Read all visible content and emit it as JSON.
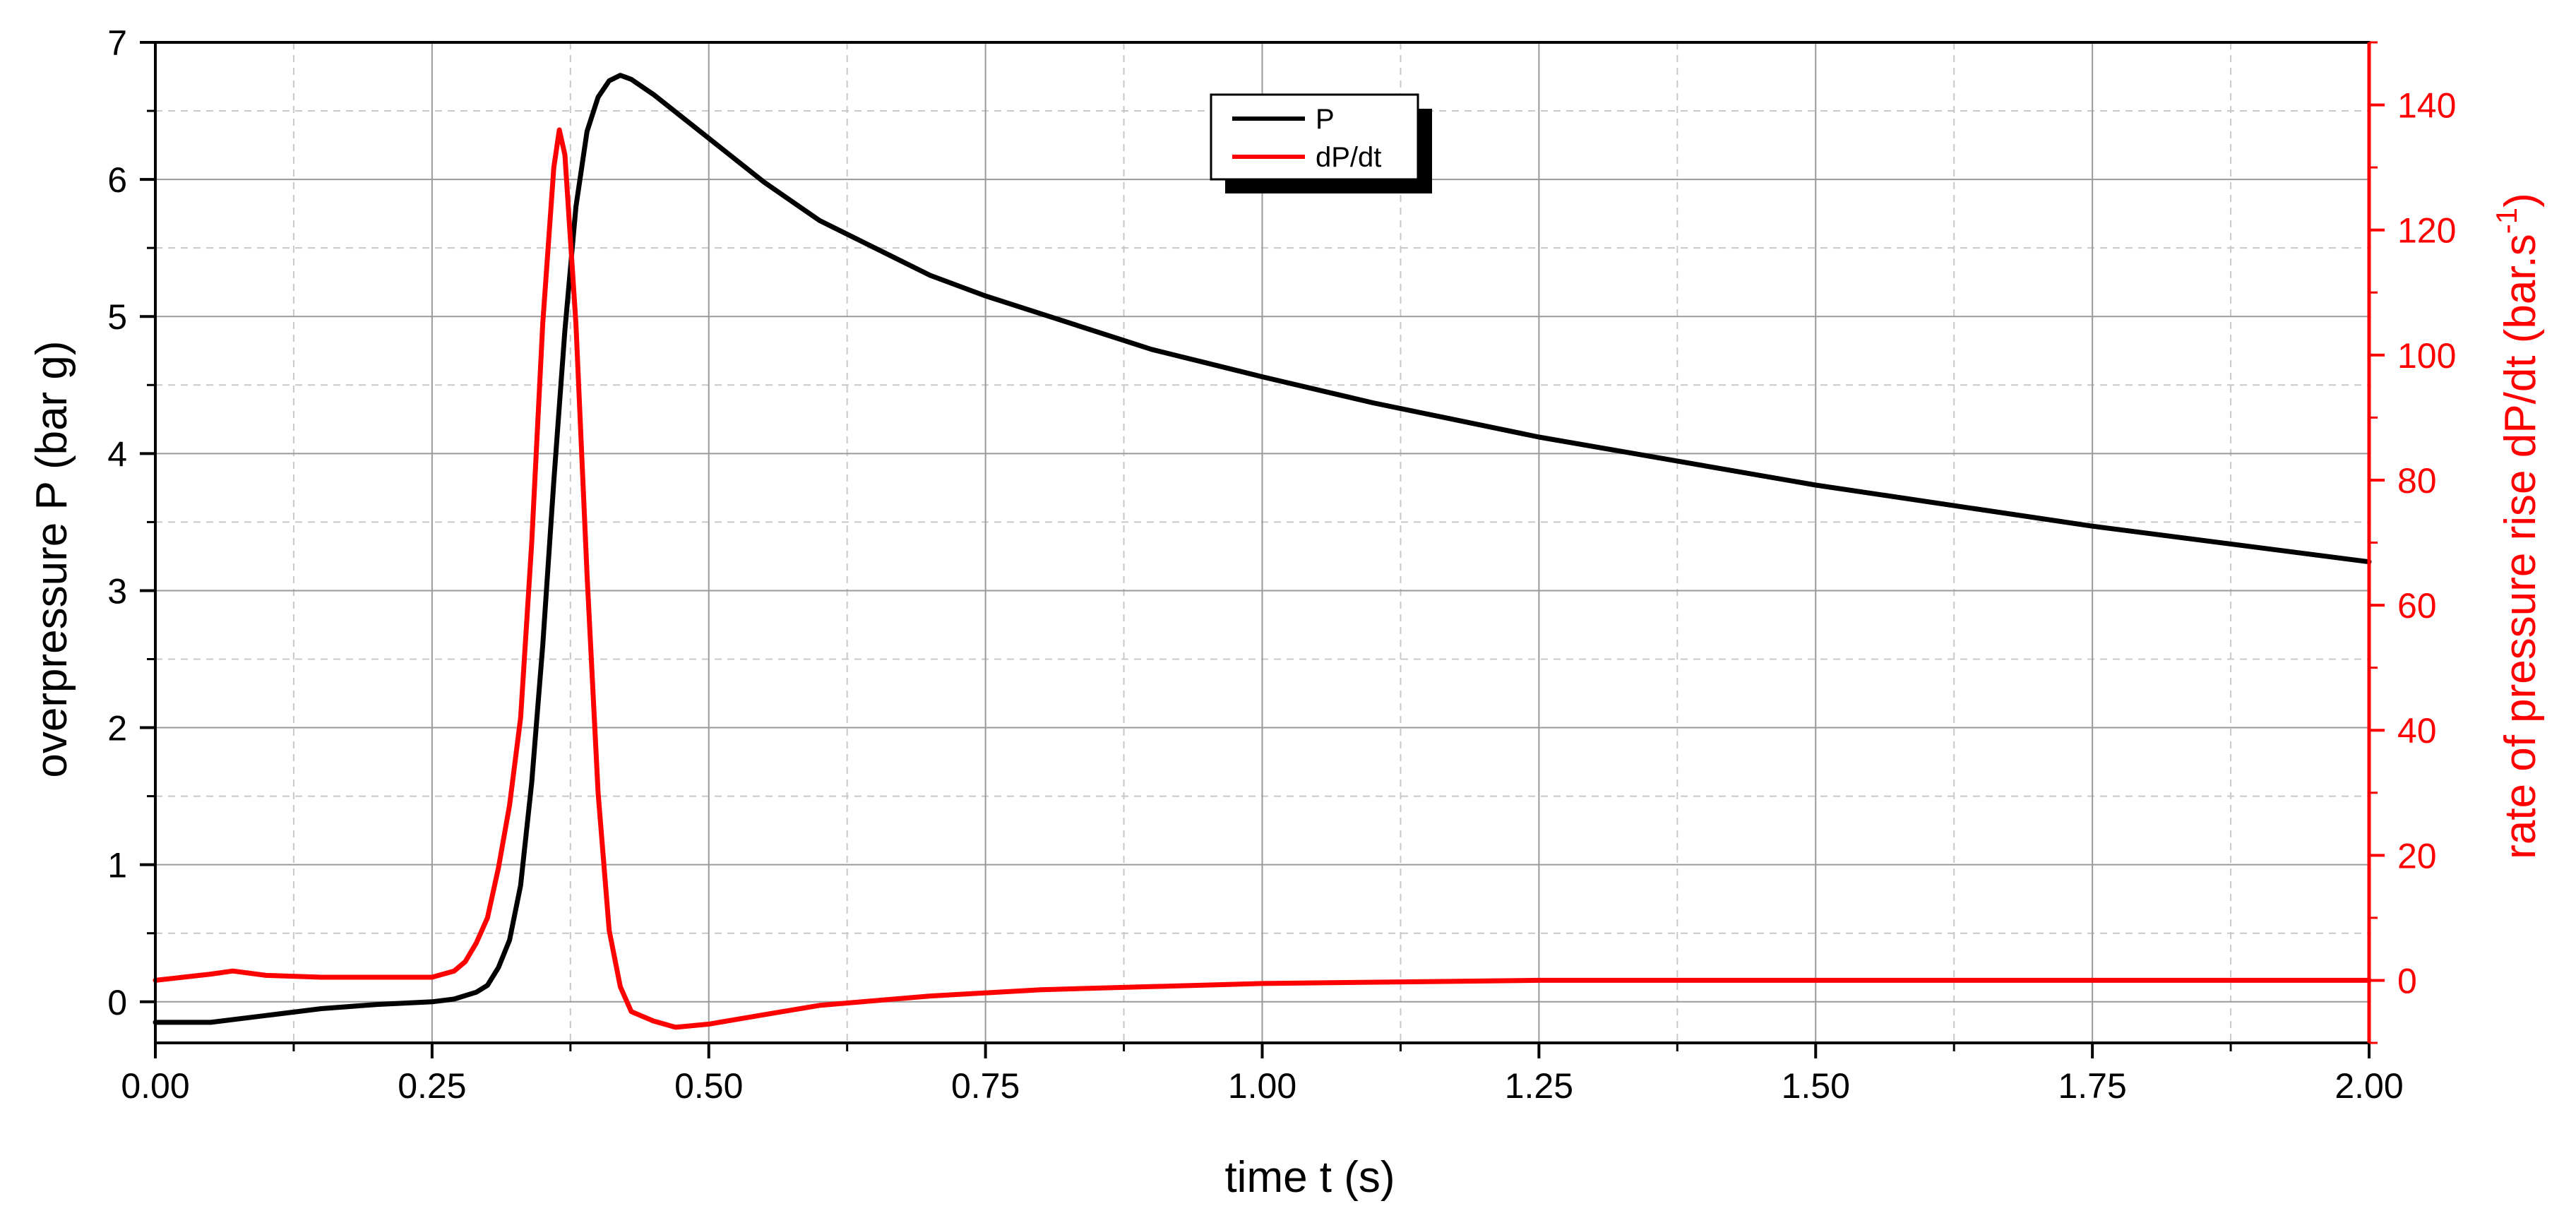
{
  "chart_data": {
    "type": "line",
    "xlabel": "time t (s)",
    "ylabel_left": "overpressure P (bar g)",
    "ylabel_right": {
      "main": "rate of pressure rise dP/dt (bar.s",
      "sup": "-1",
      "close": ")"
    },
    "xlim": [
      0,
      2.0
    ],
    "ylim_left": [
      -0.3,
      7
    ],
    "ylim_right": [
      -10,
      150
    ],
    "x_ticks": [
      0,
      0.25,
      0.5,
      0.75,
      1.0,
      1.25,
      1.5,
      1.75,
      2.0
    ],
    "x_tick_labels": [
      "0.00",
      "0.25",
      "0.50",
      "0.75",
      "1.00",
      "1.25",
      "1.50",
      "1.75",
      "2.00"
    ],
    "y_left_ticks": [
      0,
      1,
      2,
      3,
      4,
      5,
      6,
      7
    ],
    "y_left_tick_labels": [
      "0",
      "1",
      "2",
      "3",
      "4",
      "5",
      "6",
      "7"
    ],
    "y_right_ticks": [
      0,
      20,
      40,
      60,
      80,
      100,
      120,
      140
    ],
    "y_right_tick_labels": [
      "0",
      "20",
      "40",
      "60",
      "80",
      "100",
      "120",
      "140"
    ],
    "grid": true,
    "legend": {
      "placement": "top-center",
      "entries": [
        "P",
        "dP/dt"
      ]
    },
    "colors": {
      "P": "#000000",
      "dPdt": "#ff0000",
      "grid_major": "#9a9a9a",
      "grid_minor": "#c8c8c8"
    },
    "series": [
      {
        "name": "P",
        "axis": "left",
        "color": "#000000",
        "x": [
          0.0,
          0.05,
          0.1,
          0.15,
          0.2,
          0.25,
          0.27,
          0.29,
          0.3,
          0.31,
          0.32,
          0.33,
          0.34,
          0.35,
          0.36,
          0.37,
          0.38,
          0.39,
          0.4,
          0.41,
          0.42,
          0.43,
          0.45,
          0.5,
          0.55,
          0.6,
          0.7,
          0.75,
          0.8,
          0.9,
          1.0,
          1.1,
          1.25,
          1.5,
          1.75,
          2.0
        ],
        "y": [
          -0.15,
          -0.15,
          -0.1,
          -0.05,
          -0.02,
          0.0,
          0.02,
          0.07,
          0.12,
          0.25,
          0.45,
          0.85,
          1.6,
          2.6,
          3.8,
          4.9,
          5.8,
          6.35,
          6.6,
          6.72,
          6.76,
          6.73,
          6.62,
          6.3,
          5.98,
          5.7,
          5.3,
          5.15,
          5.02,
          4.76,
          4.56,
          4.37,
          4.12,
          3.77,
          3.47,
          3.21
        ]
      },
      {
        "name": "dP/dt",
        "axis": "right",
        "color": "#ff0000",
        "x": [
          0.0,
          0.05,
          0.07,
          0.1,
          0.15,
          0.2,
          0.25,
          0.27,
          0.28,
          0.29,
          0.3,
          0.31,
          0.32,
          0.33,
          0.34,
          0.35,
          0.36,
          0.365,
          0.37,
          0.38,
          0.39,
          0.4,
          0.41,
          0.42,
          0.43,
          0.45,
          0.47,
          0.5,
          0.55,
          0.6,
          0.7,
          0.8,
          0.9,
          1.0,
          1.25,
          1.5,
          1.75,
          2.0
        ],
        "y": [
          0.0,
          1.0,
          1.5,
          0.8,
          0.5,
          0.5,
          0.5,
          1.5,
          3.0,
          6.0,
          10.0,
          18.0,
          28.0,
          42.0,
          70.0,
          105.0,
          130.0,
          136.0,
          132.0,
          105.0,
          65.0,
          30.0,
          8.0,
          -1.0,
          -5.0,
          -6.5,
          -7.5,
          -7.0,
          -5.5,
          -4.0,
          -2.5,
          -1.5,
          -1.0,
          -0.5,
          0.0,
          0.0,
          0.0,
          0.0
        ]
      }
    ]
  }
}
